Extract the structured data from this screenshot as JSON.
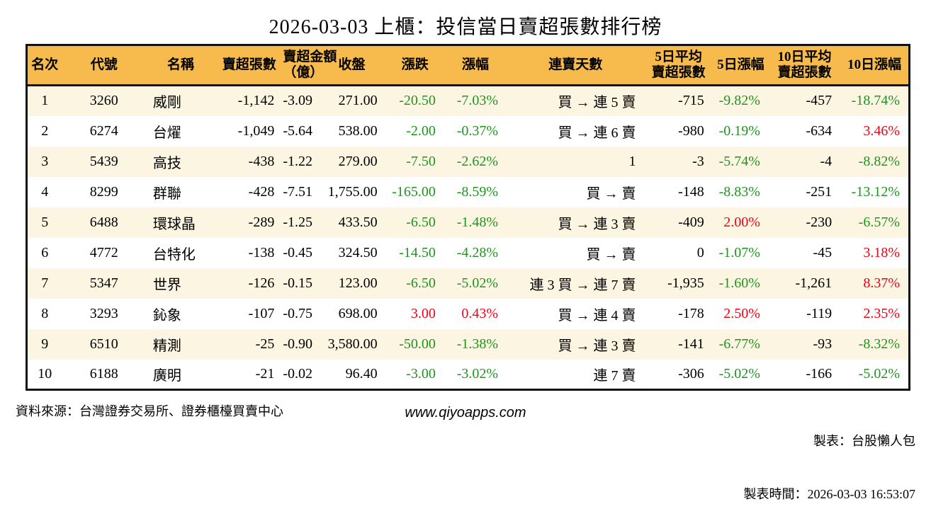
{
  "page": {
    "title": "2026-03-03 上櫃：投信當日賣超張數排行榜"
  },
  "colors": {
    "up": "#f00114",
    "down": "#1f9420",
    "header_bg": "#f7bb4d",
    "row_stripe": "#fcf5e1",
    "border": "#111111"
  },
  "chart_data": {
    "type": "table",
    "title": "2026-03-03 上櫃：投信當日賣超張數排行榜",
    "columns": [
      "名次",
      "代號",
      "名稱",
      "賣超張數",
      "賣超金額\n（億）",
      "收盤",
      "漲跌",
      "漲幅",
      "連賣天數",
      "5日平均\n賣超張數",
      "5日漲幅",
      "10日平均\n賣超張數",
      "10日漲幅"
    ],
    "rows": [
      [
        "1",
        "3260",
        "威剛",
        "-1,142",
        "-3.09",
        "271.00",
        {
          "t": "-20.50",
          "c": "down"
        },
        {
          "t": "-7.03%",
          "c": "down"
        },
        "買 → 連 5 賣",
        "-715",
        {
          "t": "-9.82%",
          "c": "down"
        },
        "-457",
        {
          "t": "-18.74%",
          "c": "down"
        }
      ],
      [
        "2",
        "6274",
        "台燿",
        "-1,049",
        "-5.64",
        "538.00",
        {
          "t": "-2.00",
          "c": "down"
        },
        {
          "t": "-0.37%",
          "c": "down"
        },
        "買 → 連 6 賣",
        "-980",
        {
          "t": "-0.19%",
          "c": "down"
        },
        "-634",
        {
          "t": "3.46%",
          "c": "up"
        }
      ],
      [
        "3",
        "5439",
        "高技",
        "-438",
        "-1.22",
        "279.00",
        {
          "t": "-7.50",
          "c": "down"
        },
        {
          "t": "-2.62%",
          "c": "down"
        },
        "1",
        "-3",
        {
          "t": "-5.74%",
          "c": "down"
        },
        "-4",
        {
          "t": "-8.82%",
          "c": "down"
        }
      ],
      [
        "4",
        "8299",
        "群聯",
        "-428",
        "-7.51",
        "1,755.00",
        {
          "t": "-165.00",
          "c": "down"
        },
        {
          "t": "-8.59%",
          "c": "down"
        },
        "買 → 賣",
        "-148",
        {
          "t": "-8.83%",
          "c": "down"
        },
        "-251",
        {
          "t": "-13.12%",
          "c": "down"
        }
      ],
      [
        "5",
        "6488",
        "環球晶",
        "-289",
        "-1.25",
        "433.50",
        {
          "t": "-6.50",
          "c": "down"
        },
        {
          "t": "-1.48%",
          "c": "down"
        },
        "買 → 連 3 賣",
        "-409",
        {
          "t": "2.00%",
          "c": "up"
        },
        "-230",
        {
          "t": "-6.57%",
          "c": "down"
        }
      ],
      [
        "6",
        "4772",
        "台特化",
        "-138",
        "-0.45",
        "324.50",
        {
          "t": "-14.50",
          "c": "down"
        },
        {
          "t": "-4.28%",
          "c": "down"
        },
        "買 → 賣",
        "0",
        {
          "t": "-1.07%",
          "c": "down"
        },
        "-45",
        {
          "t": "3.18%",
          "c": "up"
        }
      ],
      [
        "7",
        "5347",
        "世界",
        "-126",
        "-0.15",
        "123.00",
        {
          "t": "-6.50",
          "c": "down"
        },
        {
          "t": "-5.02%",
          "c": "down"
        },
        "連 3 買 → 連 7 賣",
        "-1,935",
        {
          "t": "-1.60%",
          "c": "down"
        },
        "-1,261",
        {
          "t": "8.37%",
          "c": "up"
        }
      ],
      [
        "8",
        "3293",
        "鈊象",
        "-107",
        "-0.75",
        "698.00",
        {
          "t": "3.00",
          "c": "up"
        },
        {
          "t": "0.43%",
          "c": "up"
        },
        "買 → 連 4 賣",
        "-178",
        {
          "t": "2.50%",
          "c": "up"
        },
        "-119",
        {
          "t": "2.35%",
          "c": "up"
        }
      ],
      [
        "9",
        "6510",
        "精測",
        "-25",
        "-0.90",
        "3,580.00",
        {
          "t": "-50.00",
          "c": "down"
        },
        {
          "t": "-1.38%",
          "c": "down"
        },
        "買 → 連 3 賣",
        "-141",
        {
          "t": "-6.77%",
          "c": "down"
        },
        "-93",
        {
          "t": "-8.32%",
          "c": "down"
        }
      ],
      [
        "10",
        "6188",
        "廣明",
        "-21",
        "-0.02",
        "96.40",
        {
          "t": "-3.00",
          "c": "down"
        },
        {
          "t": "-3.02%",
          "c": "down"
        },
        "連 7 賣",
        "-306",
        {
          "t": "-5.02%",
          "c": "down"
        },
        "-166",
        {
          "t": "-5.02%",
          "c": "down"
        }
      ]
    ]
  },
  "footer": {
    "source": "資料來源：台灣證券交易所、證券櫃檯買賣中心",
    "website": "www.qiyoapps.com",
    "credit": "製表：台股懶人包",
    "generated": "製表時間：2026-03-03 16:53:07"
  }
}
